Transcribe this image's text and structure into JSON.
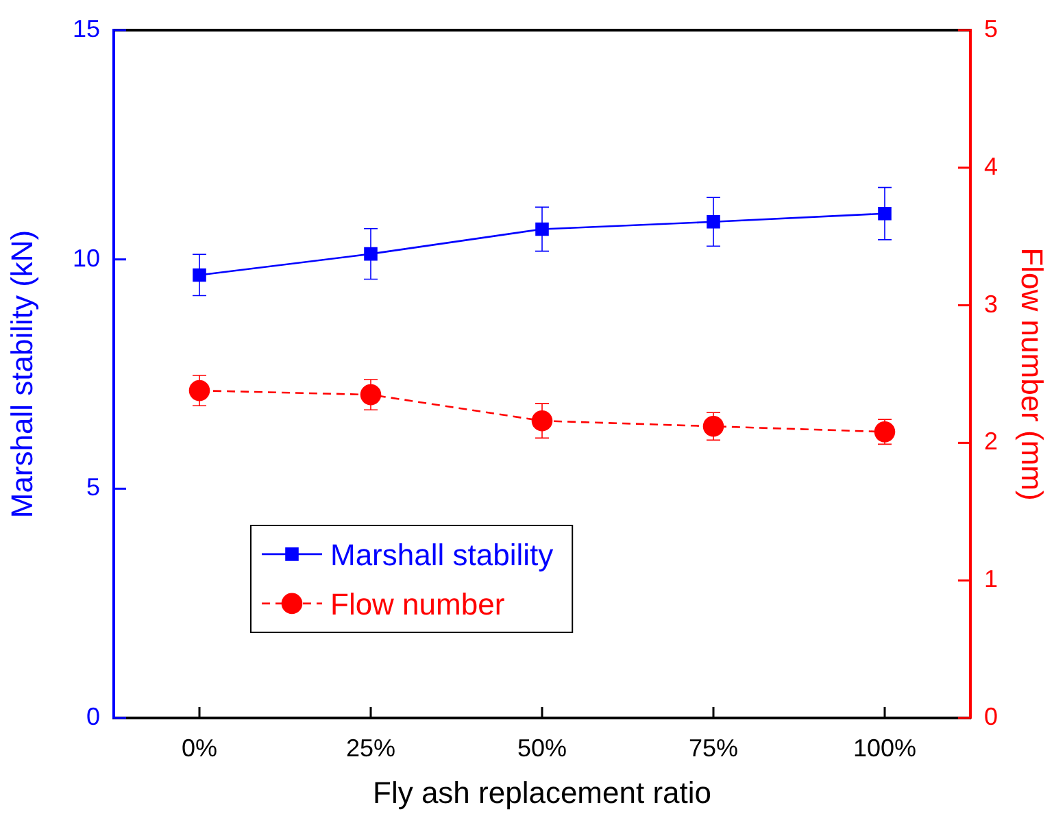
{
  "chart_data": {
    "type": "line",
    "xlabel": "Fly ash replacement ratio",
    "ylabel": "Marshall stability (kN)",
    "y2label": "Flow number (mm)",
    "categories": [
      "0%",
      "25%",
      "50%",
      "75%",
      "100%"
    ],
    "ylim": [
      0,
      15
    ],
    "yticks": [
      0,
      5,
      10,
      15
    ],
    "y2lim": [
      0,
      5
    ],
    "y2ticks": [
      0,
      1,
      2,
      3,
      4,
      5
    ],
    "grid": false,
    "legend": "center left",
    "series": [
      {
        "name": "Marshall stability",
        "color": "#0000ff",
        "values": [
          9.66,
          10.12,
          10.66,
          10.82,
          11.0
        ],
        "errors": [
          0.45,
          0.55,
          0.48,
          0.53,
          0.57
        ],
        "marker": "square",
        "line_style": "solid"
      },
      {
        "name": "Flow number",
        "color": "#ff0000",
        "axis": "y2",
        "values": [
          2.38,
          2.35,
          2.16,
          2.12,
          2.08
        ],
        "errors": [
          0.11,
          0.11,
          0.125,
          0.1,
          0.09
        ],
        "marker": "circle",
        "line_style": "dashed"
      }
    ]
  }
}
